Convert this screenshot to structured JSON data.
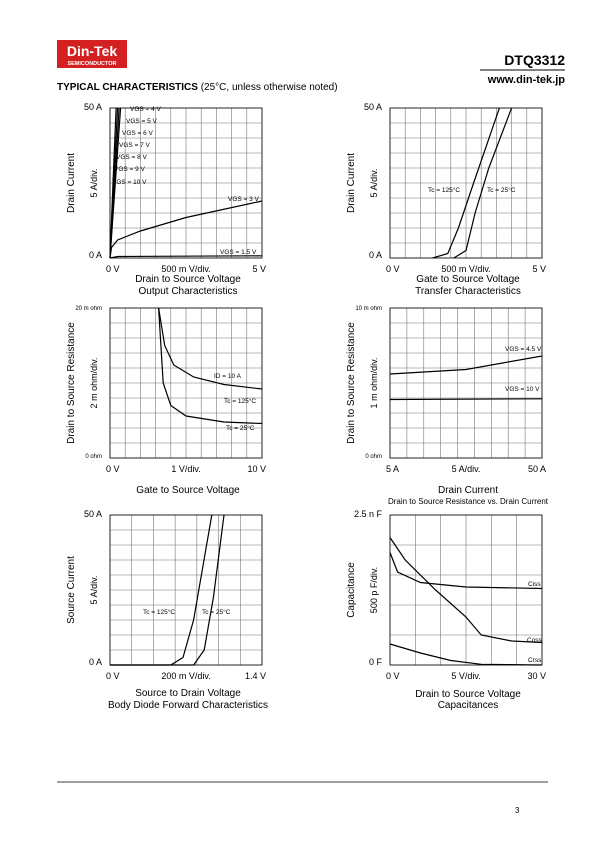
{
  "header": {
    "logo": "Din-Tek",
    "logo_sub": "SEMICONDUCTOR",
    "part": "DTQ3312",
    "url": "www.din-tek.jp",
    "section": "TYPICAL CHARACTERISTICS",
    "section_note": "(25°C, unless otherwise noted)"
  },
  "plots": [
    {
      "y_top": "50  A",
      "y_bottom": "0  A",
      "y_title": "Drain Current",
      "y_scale": "5  A/div.",
      "x_left": "0  V",
      "x_mid": "500 m V/div.",
      "x_right": "5  V",
      "captions": [
        "Drain to Source Voltage",
        "Output Characteristics"
      ],
      "annotations": [
        "VGS = 4 V",
        "VGS = 5 V",
        "VGS = 6 V",
        "VGS = 7 V",
        "VGS = 8 V",
        "VGS = 9 V",
        "VGS = 10 V",
        "VGS = 3 V",
        "VGS = 1.5 V"
      ]
    },
    {
      "y_top": "50  A",
      "y_bottom": "0  A",
      "y_title": "Drain Current",
      "y_scale": "5  A/div.",
      "x_left": "0  V",
      "x_mid": "500 m V/div.",
      "x_right": "5  V",
      "captions": [
        "Gate to Source Voltage",
        "Transfer Characteristics"
      ],
      "annotations": [
        "Tc = 125°C",
        "Tc = 25°C"
      ]
    },
    {
      "y_top": "20 m ohm",
      "y_bottom": "0   ohm",
      "y_title": "Drain to Source Resistance",
      "y_scale": "2 m ohm/div.",
      "x_left": "0  V",
      "x_mid": "1  V/div.",
      "x_right": "10  V",
      "captions": [
        "Gate to Source Voltage"
      ],
      "annotations": [
        "ID = 10 A",
        "Tc = 125°C",
        "Tc = 25°C"
      ]
    },
    {
      "y_top": "10 m ohm",
      "y_bottom": "0   ohm",
      "y_title": "Drain to Source Resistance",
      "y_scale": "1  m ohm/div.",
      "x_left": "5  A",
      "x_mid": "5  A/div.",
      "x_right": "50  A",
      "captions": [
        "Drain Current",
        "Drain to Source Resistance vs. Drain Current"
      ],
      "annotations": [
        "VGS = 4.5 V",
        "VGS = 10 V"
      ]
    },
    {
      "y_top": "50  A",
      "y_bottom": "0  A",
      "y_title": "Source Current",
      "y_scale": "5  A/div.",
      "x_left": "0  V",
      "x_mid": "200 m V/div.",
      "x_right": "1.4  V",
      "captions": [
        "Source to Drain Voltage",
        "Body Diode Forward Characteristics"
      ],
      "annotations": [
        "Tc = 125°C",
        "Tc = 25°C"
      ]
    },
    {
      "y_top": "2.5 n F",
      "y_bottom": "0  F",
      "y_title": "Capacitance",
      "y_scale": "500 p F/div.",
      "x_left": "0  V",
      "x_mid": "5  V/div.",
      "x_right": "30  V",
      "captions": [
        "Drain to Source Voltage",
        "Capacitances"
      ],
      "annotations": [
        "Ciss",
        "Coss",
        "Crss"
      ]
    }
  ],
  "footer": {
    "page": "3"
  }
}
